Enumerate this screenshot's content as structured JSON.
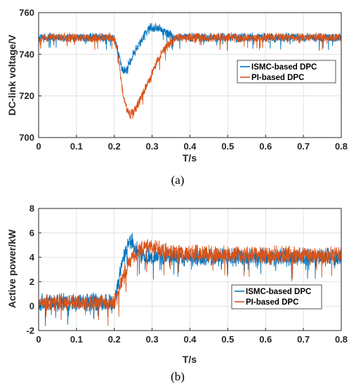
{
  "chart_data": [
    {
      "type": "line",
      "caption": "(a)",
      "xlabel": "T/s",
      "ylabel": "DC-link voltage/V",
      "xlim": [
        0,
        0.8
      ],
      "ylim": [
        700,
        760
      ],
      "xticks": [
        0,
        0.1,
        0.2,
        0.3,
        0.4,
        0.5,
        0.6,
        0.7,
        0.8
      ],
      "yticks": [
        700,
        720,
        740,
        760
      ],
      "xticklabels": [
        "0",
        "0.1",
        "0.2",
        "0.3",
        "0.4",
        "0.5",
        "0.6",
        "0.7",
        "0.8"
      ],
      "yticklabels": [
        "700",
        "720",
        "740",
        "760"
      ],
      "grid": true,
      "legend_position": "right",
      "series": [
        {
          "name": "ISMC-based DPC",
          "color": "#0072BD",
          "x": [
            0,
            0.2,
            0.21,
            0.22,
            0.23,
            0.24,
            0.25,
            0.26,
            0.27,
            0.28,
            0.29,
            0.3,
            0.31,
            0.32,
            0.33,
            0.34,
            0.35,
            0.36,
            0.8
          ],
          "y": [
            748,
            748,
            741,
            733,
            732,
            736,
            740,
            743,
            746,
            749,
            752,
            753,
            753,
            752,
            751,
            750,
            749,
            748,
            748
          ],
          "ripple": [
            4,
            4,
            4,
            4,
            4,
            4,
            4,
            4,
            4,
            4,
            4,
            4,
            4,
            4,
            4,
            4,
            4,
            4,
            4
          ]
        },
        {
          "name": "PI-based DPC",
          "color": "#D95319",
          "x": [
            0,
            0.2,
            0.21,
            0.22,
            0.23,
            0.24,
            0.25,
            0.26,
            0.27,
            0.28,
            0.29,
            0.3,
            0.31,
            0.32,
            0.33,
            0.34,
            0.35,
            0.36,
            0.8
          ],
          "y": [
            748,
            748,
            739,
            725,
            715,
            711,
            712,
            715,
            719,
            723,
            727,
            731,
            735,
            739,
            742,
            744,
            746,
            748,
            748
          ],
          "ripple": [
            4,
            4,
            4,
            4,
            4,
            4,
            4,
            4,
            4,
            4,
            4,
            4,
            4,
            4,
            4,
            4,
            4,
            4,
            4
          ]
        }
      ]
    },
    {
      "type": "line",
      "caption": "(b)",
      "xlabel": "T/s",
      "ylabel": "Active power/kW",
      "xlim": [
        0,
        0.8
      ],
      "ylim": [
        -2,
        8
      ],
      "xticks": [
        0,
        0.1,
        0.2,
        0.3,
        0.4,
        0.5,
        0.6,
        0.7,
        0.8
      ],
      "yticks": [
        -2,
        0,
        2,
        4,
        6,
        8
      ],
      "xticklabels": [
        "0",
        "0.1",
        "0.2",
        "0.3",
        "0.4",
        "0.5",
        "0.6",
        "0.7",
        "0.8"
      ],
      "yticklabels": [
        "-2",
        "0",
        "2",
        "4",
        "6",
        "8"
      ],
      "grid": true,
      "legend_position": "lower-right",
      "series": [
        {
          "name": "ISMC-based DPC",
          "color": "#0072BD",
          "x": [
            0,
            0.2,
            0.21,
            0.22,
            0.23,
            0.24,
            0.25,
            0.26,
            0.27,
            0.28,
            0.3,
            0.8
          ],
          "y": [
            0.3,
            0.3,
            1.8,
            3.4,
            4.6,
            5.3,
            5.2,
            4.6,
            4.2,
            4.0,
            4.0,
            4.0
          ],
          "ripple": [
            1.3,
            1.3,
            1.3,
            1.3,
            1.3,
            1.3,
            1.3,
            1.3,
            1.3,
            1.3,
            1.3,
            1.3
          ]
        },
        {
          "name": "PI-based DPC",
          "color": "#D95319",
          "x": [
            0,
            0.2,
            0.21,
            0.22,
            0.23,
            0.24,
            0.25,
            0.26,
            0.27,
            0.28,
            0.3,
            0.33,
            0.36,
            0.8
          ],
          "y": [
            0.3,
            0.3,
            1.0,
            2.0,
            2.9,
            3.6,
            4.1,
            4.4,
            4.6,
            4.7,
            4.8,
            4.6,
            4.3,
            4.1
          ],
          "ripple": [
            1.2,
            1.2,
            1.3,
            1.3,
            1.3,
            1.3,
            1.3,
            1.3,
            1.3,
            1.3,
            1.3,
            1.3,
            1.3,
            1.3
          ]
        }
      ]
    }
  ]
}
